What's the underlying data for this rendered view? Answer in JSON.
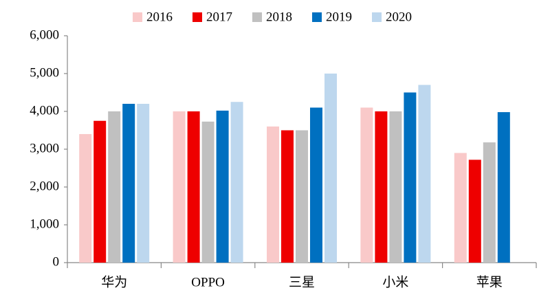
{
  "chart_data": {
    "type": "bar",
    "categories": [
      "华为",
      "OPPO",
      "三星",
      "小米",
      "苹果"
    ],
    "series": [
      {
        "name": "2016",
        "color": "#f9c9c9",
        "values": [
          3400,
          4000,
          3600,
          4100,
          2900
        ]
      },
      {
        "name": "2017",
        "color": "#ee0000",
        "values": [
          3750,
          4000,
          3500,
          4000,
          2720
        ]
      },
      {
        "name": "2018",
        "color": "#c0c0c0",
        "values": [
          4000,
          3730,
          3500,
          4000,
          3180
        ]
      },
      {
        "name": "2019",
        "color": "#0070c0",
        "values": [
          4200,
          4020,
          4100,
          4500,
          3980
        ]
      },
      {
        "name": "2020",
        "color": "#bdd7ee",
        "values": [
          4200,
          4250,
          5000,
          4700,
          null
        ]
      }
    ],
    "ylim": [
      0,
      6000
    ],
    "yticks": [
      0,
      {
        "value": 1000,
        "label": "1,000"
      },
      {
        "value": 2000,
        "label": "2,000"
      },
      {
        "value": 3000,
        "label": "3,000"
      },
      {
        "value": 4000,
        "label": "4,000"
      },
      {
        "value": 5000,
        "label": "5,000"
      },
      {
        "value": 6000,
        "label": "6,000"
      }
    ],
    "grid": false,
    "legend": "top"
  }
}
